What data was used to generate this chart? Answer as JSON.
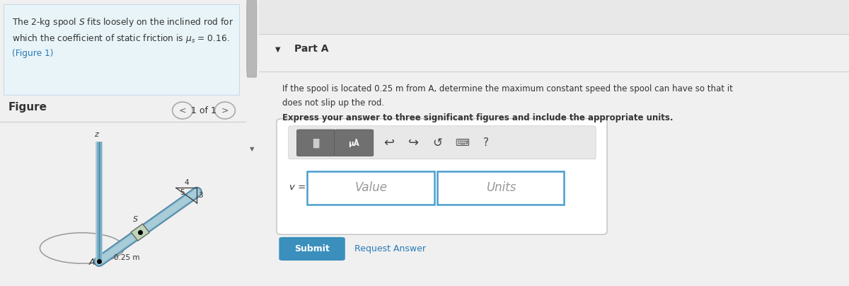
{
  "left_panel_bg": "#e8f4f8",
  "left_panel_border": "#c8dde8",
  "fig_bg": "#ffffff",
  "right_bg": "#ffffff",
  "gray_bg": "#f0f0f0",
  "dark_text": "#333333",
  "link_color": "#2a7ab8",
  "divider_color": "#cccccc",
  "submit_bg": "#3a8fbd",
  "submit_text_color": "#ffffff",
  "input_border": "#4a9fcd",
  "toolbar_inner_bg": "#d8d8d8",
  "btn_bg": "#707070",
  "white": "#ffffff",
  "black": "#000000",
  "rod_color": "#7ab0c8",
  "rod_light": "#a8ccd8",
  "rod_dark": "#4a80a0",
  "spool_color": "#c0d4b8",
  "ellipse_color": "#999999",
  "text_line1a": "The 2-kg spool ",
  "text_line1b": "S",
  "text_line1c": " fits loosely on the inclined rod for",
  "text_line2": "which the coefficient of static friction is μs = 0.16.",
  "text_link": "(Figure 1)",
  "figure_label": "Figure",
  "nav_text": "1 of 1",
  "part_label": "Part A",
  "prob_line1": "If the spool is located 0.25 m from A, determine the maximum constant speed the spool can have so that it",
  "prob_line2": "does not slip up the rod.",
  "bold_line": "Express your answer to three significant figures and include the appropriate units.",
  "v_label": "v =",
  "value_ph": "Value",
  "units_ph": "Units",
  "submit_text": "Submit",
  "req_answer": "Request Answer"
}
